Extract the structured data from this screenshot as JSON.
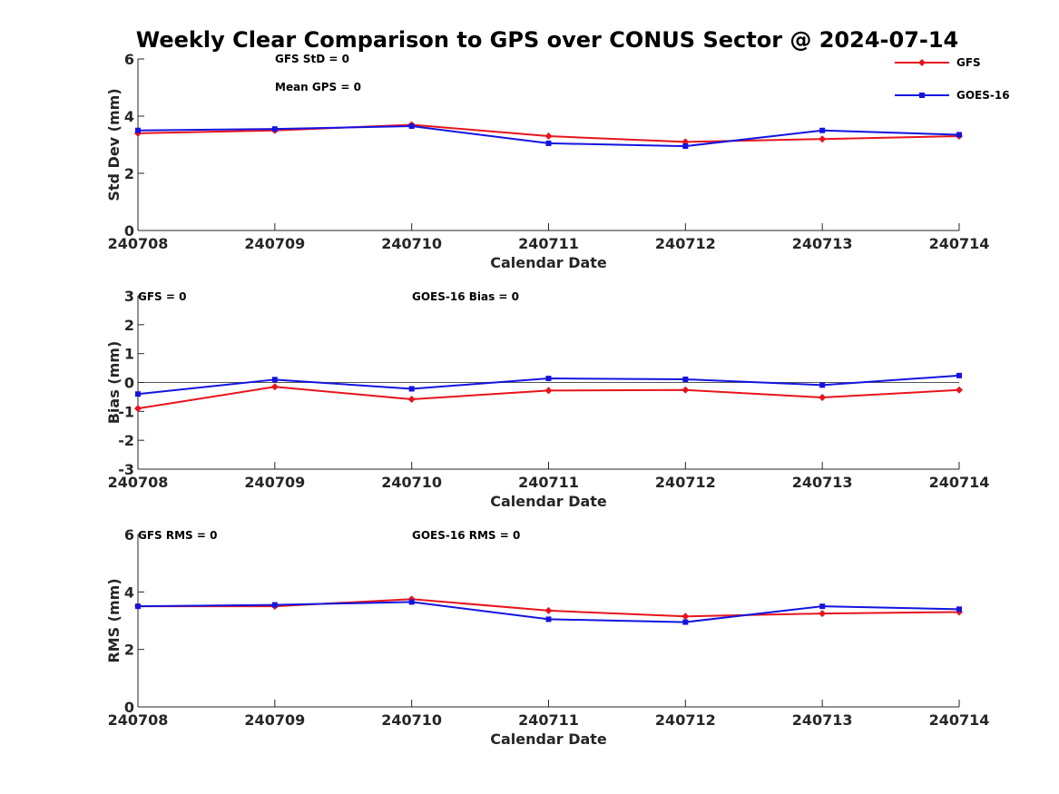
{
  "title": "Weekly Clear Comparison to GPS over CONUS Sector @ 2024-07-14",
  "legend": {
    "position": "top-right",
    "entries": [
      {
        "name": "GFS",
        "color": "#e8141c",
        "marker": "diamond"
      },
      {
        "name": "GOES-16",
        "color": "#1414e0",
        "marker": "square"
      }
    ]
  },
  "chart_data": [
    {
      "type": "line",
      "xlabel": "Calendar Date",
      "ylabel": "Std Dev (mm)",
      "categories": [
        "240708",
        "240709",
        "240710",
        "240711",
        "240712",
        "240713",
        "240714"
      ],
      "ylim": [
        0,
        6
      ],
      "yticks": [
        0,
        2,
        4,
        6
      ],
      "zero_line": false,
      "annotations": [
        "GFS StD = 0",
        "Mean GPS = 0"
      ],
      "series": [
        {
          "name": "GFS",
          "color": "#e8141c",
          "marker": "diamond",
          "values": [
            3.4,
            3.5,
            3.7,
            3.3,
            3.1,
            3.2,
            3.3
          ]
        },
        {
          "name": "GOES-16",
          "color": "#1414e0",
          "marker": "square",
          "values": [
            3.5,
            3.55,
            3.65,
            3.05,
            2.95,
            3.5,
            3.35
          ]
        }
      ]
    },
    {
      "type": "line",
      "xlabel": "Calendar Date",
      "ylabel": "Bias (mm)",
      "categories": [
        "240708",
        "240709",
        "240710",
        "240711",
        "240712",
        "240713",
        "240714"
      ],
      "ylim": [
        -3,
        3
      ],
      "yticks": [
        -3,
        -2,
        -1,
        0,
        1,
        2,
        3
      ],
      "zero_line": true,
      "annotations": [
        "GFS = 0",
        "GOES-16 Bias  = 0"
      ],
      "series": [
        {
          "name": "GFS",
          "color": "#e8141c",
          "marker": "diamond",
          "values": [
            -0.9,
            -0.15,
            -0.58,
            -0.28,
            -0.26,
            -0.52,
            -0.26
          ]
        },
        {
          "name": "GOES-16",
          "color": "#1414e0",
          "marker": "square",
          "values": [
            -0.4,
            0.1,
            -0.22,
            0.14,
            0.11,
            -0.09,
            0.24
          ]
        }
      ]
    },
    {
      "type": "line",
      "xlabel": "Calendar Date",
      "ylabel": "RMS (mm)",
      "categories": [
        "240708",
        "240709",
        "240710",
        "240711",
        "240712",
        "240713",
        "240714"
      ],
      "ylim": [
        0,
        6
      ],
      "yticks": [
        0,
        2,
        4,
        6
      ],
      "zero_line": false,
      "annotations": [
        "GFS RMS = 0",
        "GOES-16 RMS = 0"
      ],
      "series": [
        {
          "name": "GFS",
          "color": "#e8141c",
          "marker": "diamond",
          "values": [
            3.5,
            3.5,
            3.75,
            3.35,
            3.15,
            3.25,
            3.3
          ]
        },
        {
          "name": "GOES-16",
          "color": "#1414e0",
          "marker": "square",
          "values": [
            3.5,
            3.55,
            3.65,
            3.05,
            2.95,
            3.5,
            3.4
          ]
        }
      ]
    }
  ]
}
